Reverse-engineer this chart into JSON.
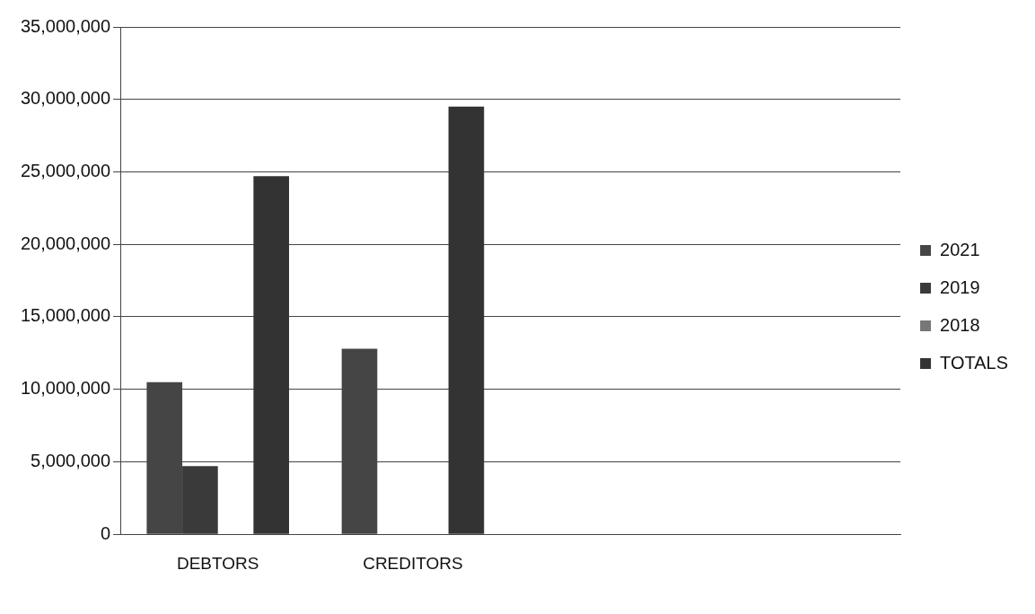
{
  "chart_data": {
    "type": "bar",
    "categories": [
      "DEBTORS",
      "CREDITORS",
      null,
      null
    ],
    "series": [
      {
        "name": "2021",
        "color": "#454545",
        "values": [
          10500000,
          12800000,
          null,
          null
        ]
      },
      {
        "name": "2019",
        "color": "#3a3a3a",
        "values": [
          4700000,
          null,
          null,
          null
        ]
      },
      {
        "name": "2018",
        "color": "#777777",
        "values": [
          null,
          null,
          null,
          null
        ]
      },
      {
        "name": "TOTALS",
        "color": "#333333",
        "values": [
          24700000,
          29500000,
          null,
          null
        ]
      }
    ],
    "ylim": [
      0,
      35000000
    ],
    "yticks": [
      0,
      {
        "value": 5000000,
        "label": "5,000,000"
      },
      {
        "value": 10000000,
        "label": "10,000,000"
      },
      {
        "value": 15000000,
        "label": "15,000,000"
      },
      {
        "value": 20000000,
        "label": "20,000,000"
      },
      {
        "value": 25000000,
        "label": "25,000,000"
      },
      {
        "value": 30000000,
        "label": "30,000,000"
      },
      {
        "value": 35000000,
        "label": "35,000,000"
      }
    ],
    "grid": "y",
    "legend": "right"
  }
}
